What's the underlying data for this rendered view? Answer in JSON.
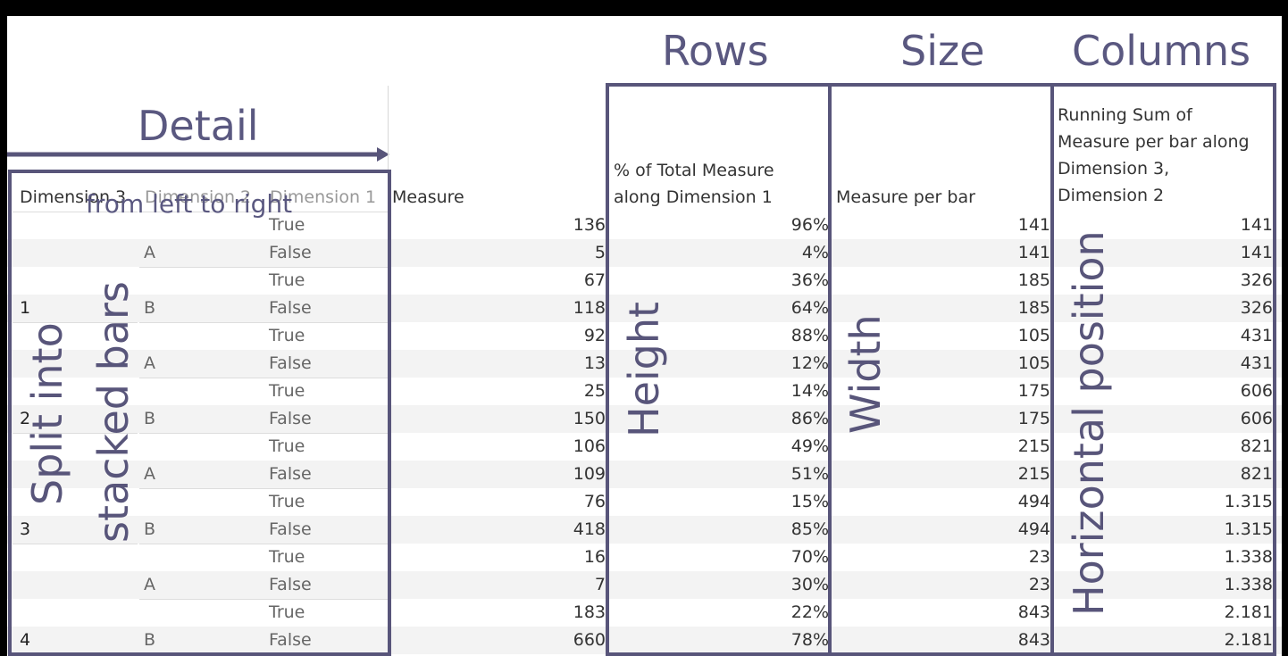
{
  "annotations": {
    "rows": "Rows",
    "size": "Size",
    "columns": "Columns",
    "detail": "Detail",
    "from_left": "from left to right",
    "split_line1": "Split into",
    "split_line2": "stacked bars",
    "height": "Height",
    "width": "Width",
    "horizontal": "Horizontal position"
  },
  "headers": {
    "dim3": "Dimension 3",
    "dim2": "Dimension 2",
    "dim1": "Dimension 1",
    "measure": "Measure",
    "pct_line1": "% of Total Measure",
    "pct_line2": "along Dimension 1",
    "mpb": "Measure per bar",
    "rs_line1": "Running Sum of",
    "rs_line2": "Measure per bar along",
    "rs_line3": "Dimension 3,",
    "rs_line4": "Dimension 2"
  },
  "dim3_labels": [
    "1",
    "2",
    "3",
    "4"
  ],
  "dim2_labels": [
    "A",
    "B",
    "A",
    "B",
    "A",
    "B",
    "A",
    "B"
  ],
  "rows": [
    {
      "d1": "True",
      "measure": "136",
      "pct": "96%",
      "mpb": "141",
      "rs": "141"
    },
    {
      "d1": "False",
      "measure": "5",
      "pct": "4%",
      "mpb": "141",
      "rs": "141"
    },
    {
      "d1": "True",
      "measure": "67",
      "pct": "36%",
      "mpb": "185",
      "rs": "326"
    },
    {
      "d1": "False",
      "measure": "118",
      "pct": "64%",
      "mpb": "185",
      "rs": "326"
    },
    {
      "d1": "True",
      "measure": "92",
      "pct": "88%",
      "mpb": "105",
      "rs": "431"
    },
    {
      "d1": "False",
      "measure": "13",
      "pct": "12%",
      "mpb": "105",
      "rs": "431"
    },
    {
      "d1": "True",
      "measure": "25",
      "pct": "14%",
      "mpb": "175",
      "rs": "606"
    },
    {
      "d1": "False",
      "measure": "150",
      "pct": "86%",
      "mpb": "175",
      "rs": "606"
    },
    {
      "d1": "True",
      "measure": "106",
      "pct": "49%",
      "mpb": "215",
      "rs": "821"
    },
    {
      "d1": "False",
      "measure": "109",
      "pct": "51%",
      "mpb": "215",
      "rs": "821"
    },
    {
      "d1": "True",
      "measure": "76",
      "pct": "15%",
      "mpb": "494",
      "rs": "1.315"
    },
    {
      "d1": "False",
      "measure": "418",
      "pct": "85%",
      "mpb": "494",
      "rs": "1.315"
    },
    {
      "d1": "True",
      "measure": "16",
      "pct": "70%",
      "mpb": "23",
      "rs": "1.338"
    },
    {
      "d1": "False",
      "measure": "7",
      "pct": "30%",
      "mpb": "23",
      "rs": "1.338"
    },
    {
      "d1": "True",
      "measure": "183",
      "pct": "22%",
      "mpb": "843",
      "rs": "2.181"
    },
    {
      "d1": "False",
      "measure": "660",
      "pct": "78%",
      "mpb": "843",
      "rs": "2.181"
    }
  ]
}
